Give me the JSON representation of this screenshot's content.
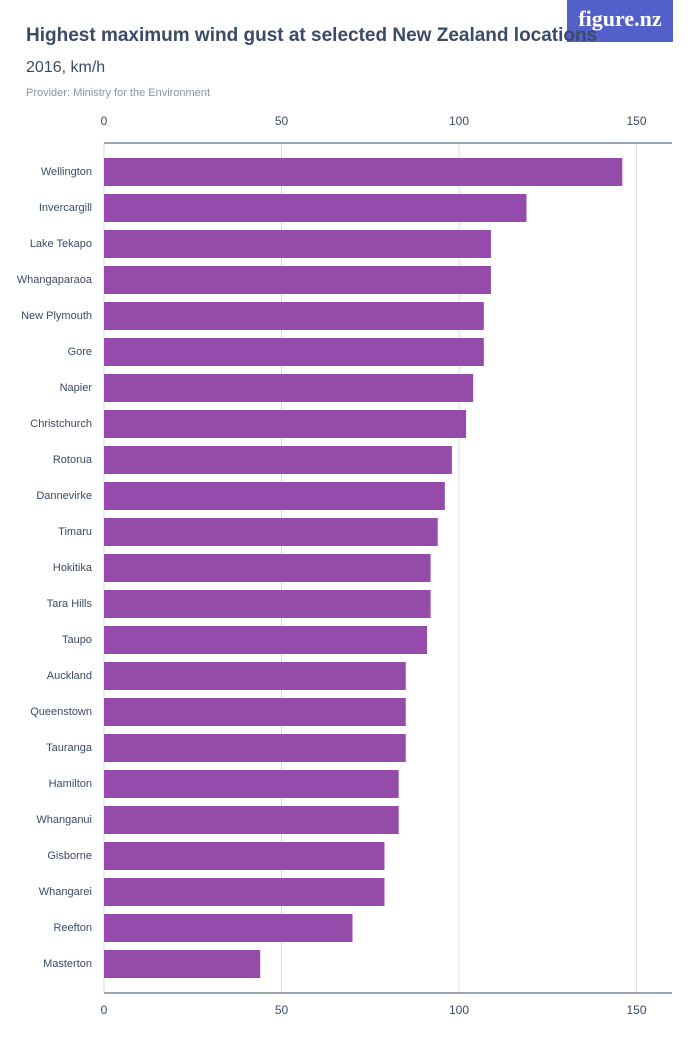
{
  "brand": "figure.nz",
  "chart_data": {
    "type": "bar",
    "orientation": "horizontal",
    "title": "Highest maximum wind gust at selected New Zealand locations",
    "subtitle": "2016, km/h",
    "provider": "Provider: Ministry for the Environment",
    "categories": [
      "Wellington",
      "Invercargill",
      "Lake Tekapo",
      "Whangaparaoa",
      "New Plymouth",
      "Gore",
      "Napier",
      "Christchurch",
      "Rotorua",
      "Dannevirke",
      "Timaru",
      "Hokitika",
      "Tara Hills",
      "Taupo",
      "Auckland",
      "Queenstown",
      "Tauranga",
      "Hamilton",
      "Whanganui",
      "Gisborne",
      "Whangarei",
      "Reefton",
      "Masterton"
    ],
    "values": [
      146,
      119,
      109,
      109,
      107,
      107,
      104,
      102,
      98,
      96,
      94,
      92,
      92,
      91,
      85,
      85,
      85,
      83,
      83,
      79,
      79,
      70,
      44
    ],
    "color": "#944ba9",
    "xlim": [
      0,
      160
    ],
    "xticks": [
      0,
      50,
      100,
      150
    ],
    "grid": true
  }
}
